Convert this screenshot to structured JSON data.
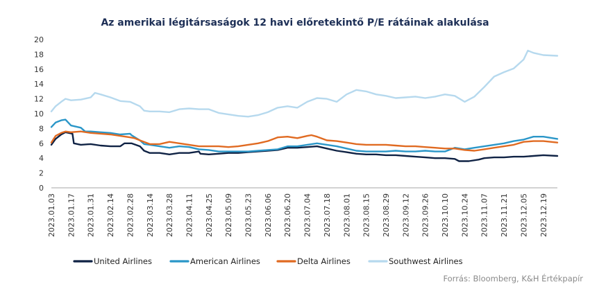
{
  "chart_data": {
    "type": "line",
    "title": "Az amerikai légitársaságok 12 havi előretekintő P/E rátáinak alakulása",
    "source": "Forrás: Bloomberg, K&H Értékpapír",
    "xlabel": "",
    "ylabel": "",
    "ylim": [
      0,
      20
    ],
    "yticks": [
      0,
      2,
      4,
      6,
      8,
      10,
      12,
      14,
      16,
      18,
      20
    ],
    "x_range": [
      "2023.01.03",
      "2023.12.29"
    ],
    "x_ticks": [
      "2023.01.03",
      "2023.01.17",
      "2023.01.31",
      "2023.02.14",
      "2023.02.28",
      "2023.03.14",
      "2023.03.28",
      "2023.04.11",
      "2023.04.25",
      "2023.05.09",
      "2023.05.23",
      "2023.06.06",
      "2023.06.20",
      "2023.07.04",
      "2023.07.18",
      "2023.08.01",
      "2023.08.15",
      "2023.08.29",
      "2023.09.12",
      "2023.09.26",
      "2023.10.10",
      "2023.10.24",
      "2023.11.07",
      "2023.11.21",
      "2023.12.05",
      "2023.12.19"
    ],
    "grid": false,
    "legend_position": "bottom",
    "series": [
      {
        "name": "United Airlines",
        "color": "#0f2244",
        "x": [
          "2023.01.03",
          "2023.01.06",
          "2023.01.10",
          "2023.01.13",
          "2023.01.18",
          "2023.01.19",
          "2023.01.24",
          "2023.01.31",
          "2023.02.07",
          "2023.02.14",
          "2023.02.21",
          "2023.02.24",
          "2023.03.01",
          "2023.03.07",
          "2023.03.10",
          "2023.03.14",
          "2023.03.21",
          "2023.03.28",
          "2023.04.04",
          "2023.04.11",
          "2023.04.18",
          "2023.04.19",
          "2023.04.25",
          "2023.05.02",
          "2023.05.09",
          "2023.05.16",
          "2023.05.23",
          "2023.05.30",
          "2023.06.06",
          "2023.06.13",
          "2023.06.20",
          "2023.06.27",
          "2023.07.04",
          "2023.07.11",
          "2023.07.18",
          "2023.07.25",
          "2023.08.01",
          "2023.08.08",
          "2023.08.15",
          "2023.08.22",
          "2023.08.29",
          "2023.09.05",
          "2023.09.12",
          "2023.09.19",
          "2023.09.26",
          "2023.10.03",
          "2023.10.10",
          "2023.10.17",
          "2023.10.20",
          "2023.10.27",
          "2023.11.03",
          "2023.11.07",
          "2023.11.14",
          "2023.11.21",
          "2023.11.28",
          "2023.12.05",
          "2023.12.12",
          "2023.12.19",
          "2023.12.29"
        ],
        "values": [
          5.8,
          6.6,
          7.2,
          7.5,
          7.3,
          6.0,
          5.8,
          5.9,
          5.7,
          5.6,
          5.6,
          6.0,
          6.0,
          5.6,
          5.0,
          4.7,
          4.7,
          4.5,
          4.7,
          4.7,
          4.9,
          4.6,
          4.5,
          4.6,
          4.7,
          4.7,
          4.8,
          4.9,
          5.0,
          5.1,
          5.4,
          5.4,
          5.5,
          5.6,
          5.3,
          5.0,
          4.8,
          4.6,
          4.5,
          4.5,
          4.4,
          4.4,
          4.3,
          4.2,
          4.1,
          4.0,
          4.0,
          3.9,
          3.6,
          3.6,
          3.8,
          4.0,
          4.1,
          4.1,
          4.2,
          4.2,
          4.3,
          4.4,
          4.3
        ]
      },
      {
        "name": "American Airlines",
        "color": "#2a96c8",
        "x": [
          "2023.01.03",
          "2023.01.06",
          "2023.01.10",
          "2023.01.13",
          "2023.01.17",
          "2023.01.24",
          "2023.01.27",
          "2023.01.31",
          "2023.02.07",
          "2023.02.14",
          "2023.02.21",
          "2023.02.28",
          "2023.03.01",
          "2023.03.07",
          "2023.03.10",
          "2023.03.14",
          "2023.03.21",
          "2023.03.28",
          "2023.04.04",
          "2023.04.11",
          "2023.04.18",
          "2023.04.25",
          "2023.05.02",
          "2023.05.09",
          "2023.05.16",
          "2023.05.23",
          "2023.05.30",
          "2023.06.06",
          "2023.06.13",
          "2023.06.20",
          "2023.06.27",
          "2023.07.04",
          "2023.07.11",
          "2023.07.18",
          "2023.07.25",
          "2023.08.01",
          "2023.08.08",
          "2023.08.15",
          "2023.08.22",
          "2023.08.29",
          "2023.09.05",
          "2023.09.12",
          "2023.09.19",
          "2023.09.26",
          "2023.10.03",
          "2023.10.10",
          "2023.10.17",
          "2023.10.24",
          "2023.10.31",
          "2023.11.07",
          "2023.11.14",
          "2023.11.21",
          "2023.11.28",
          "2023.12.05",
          "2023.12.12",
          "2023.12.19",
          "2023.12.29"
        ],
        "values": [
          8.2,
          8.8,
          9.1,
          9.2,
          8.4,
          8.1,
          7.6,
          7.6,
          7.5,
          7.4,
          7.2,
          7.3,
          7.1,
          6.4,
          5.9,
          5.8,
          5.6,
          5.4,
          5.6,
          5.5,
          5.2,
          5.1,
          4.9,
          4.9,
          4.9,
          4.9,
          5.0,
          5.1,
          5.2,
          5.6,
          5.6,
          5.8,
          6.0,
          5.8,
          5.6,
          5.3,
          5.0,
          4.9,
          4.9,
          4.9,
          5.0,
          4.9,
          4.9,
          5.0,
          4.9,
          4.9,
          5.4,
          5.2,
          5.4,
          5.6,
          5.8,
          6.0,
          6.3,
          6.5,
          6.9,
          6.9,
          6.6
        ]
      },
      {
        "name": "Delta Airlines",
        "color": "#e06a21",
        "x": [
          "2023.01.03",
          "2023.01.06",
          "2023.01.10",
          "2023.01.13",
          "2023.01.17",
          "2023.01.24",
          "2023.01.31",
          "2023.02.07",
          "2023.02.14",
          "2023.02.21",
          "2023.02.28",
          "2023.03.03",
          "2023.03.07",
          "2023.03.14",
          "2023.03.21",
          "2023.03.28",
          "2023.04.04",
          "2023.04.11",
          "2023.04.18",
          "2023.04.25",
          "2023.05.02",
          "2023.05.09",
          "2023.05.16",
          "2023.05.23",
          "2023.05.30",
          "2023.06.06",
          "2023.06.13",
          "2023.06.20",
          "2023.06.27",
          "2023.07.04",
          "2023.07.07",
          "2023.07.11",
          "2023.07.18",
          "2023.07.25",
          "2023.08.01",
          "2023.08.08",
          "2023.08.15",
          "2023.08.22",
          "2023.08.29",
          "2023.09.05",
          "2023.09.12",
          "2023.09.19",
          "2023.09.26",
          "2023.10.03",
          "2023.10.10",
          "2023.10.17",
          "2023.10.24",
          "2023.10.31",
          "2023.11.07",
          "2023.11.14",
          "2023.11.21",
          "2023.11.28",
          "2023.12.05",
          "2023.12.12",
          "2023.12.19",
          "2023.12.29"
        ],
        "values": [
          6.1,
          7.0,
          7.4,
          7.6,
          7.5,
          7.6,
          7.4,
          7.3,
          7.2,
          7.0,
          6.8,
          6.7,
          6.4,
          5.9,
          5.9,
          6.2,
          6.0,
          5.8,
          5.6,
          5.6,
          5.6,
          5.5,
          5.6,
          5.8,
          6.0,
          6.3,
          6.8,
          6.9,
          6.7,
          7.0,
          7.1,
          6.9,
          6.4,
          6.3,
          6.1,
          5.9,
          5.8,
          5.8,
          5.8,
          5.7,
          5.6,
          5.6,
          5.5,
          5.4,
          5.3,
          5.3,
          5.1,
          5.0,
          5.2,
          5.4,
          5.6,
          5.8,
          6.2,
          6.3,
          6.3,
          6.1
        ]
      },
      {
        "name": "Southwest Airlines",
        "color": "#b6d9ee",
        "x": [
          "2023.01.03",
          "2023.01.06",
          "2023.01.10",
          "2023.01.13",
          "2023.01.17",
          "2023.01.24",
          "2023.01.31",
          "2023.02.03",
          "2023.02.07",
          "2023.02.14",
          "2023.02.21",
          "2023.02.28",
          "2023.03.07",
          "2023.03.10",
          "2023.03.14",
          "2023.03.21",
          "2023.03.28",
          "2023.04.04",
          "2023.04.11",
          "2023.04.18",
          "2023.04.25",
          "2023.05.02",
          "2023.05.09",
          "2023.05.16",
          "2023.05.23",
          "2023.05.30",
          "2023.06.06",
          "2023.06.13",
          "2023.06.20",
          "2023.06.27",
          "2023.07.04",
          "2023.07.11",
          "2023.07.18",
          "2023.07.25",
          "2023.08.01",
          "2023.08.08",
          "2023.08.15",
          "2023.08.22",
          "2023.08.29",
          "2023.09.05",
          "2023.09.12",
          "2023.09.19",
          "2023.09.26",
          "2023.10.03",
          "2023.10.10",
          "2023.10.17",
          "2023.10.24",
          "2023.10.31",
          "2023.11.07",
          "2023.11.14",
          "2023.11.21",
          "2023.11.28",
          "2023.12.05",
          "2023.12.08",
          "2023.12.12",
          "2023.12.19",
          "2023.12.29"
        ],
        "values": [
          10.3,
          11.0,
          11.6,
          12.0,
          11.8,
          11.9,
          12.2,
          12.8,
          12.6,
          12.2,
          11.7,
          11.6,
          11.0,
          10.4,
          10.3,
          10.3,
          10.2,
          10.6,
          10.7,
          10.6,
          10.6,
          10.1,
          9.9,
          9.7,
          9.6,
          9.8,
          10.2,
          10.8,
          11.0,
          10.8,
          11.6,
          12.1,
          12.0,
          11.6,
          12.6,
          13.2,
          13.0,
          12.6,
          12.4,
          12.1,
          12.2,
          12.3,
          12.1,
          12.3,
          12.6,
          12.4,
          11.6,
          12.3,
          13.6,
          15.0,
          15.6,
          16.1,
          17.3,
          18.5,
          18.2,
          17.9,
          17.8
        ]
      }
    ]
  }
}
